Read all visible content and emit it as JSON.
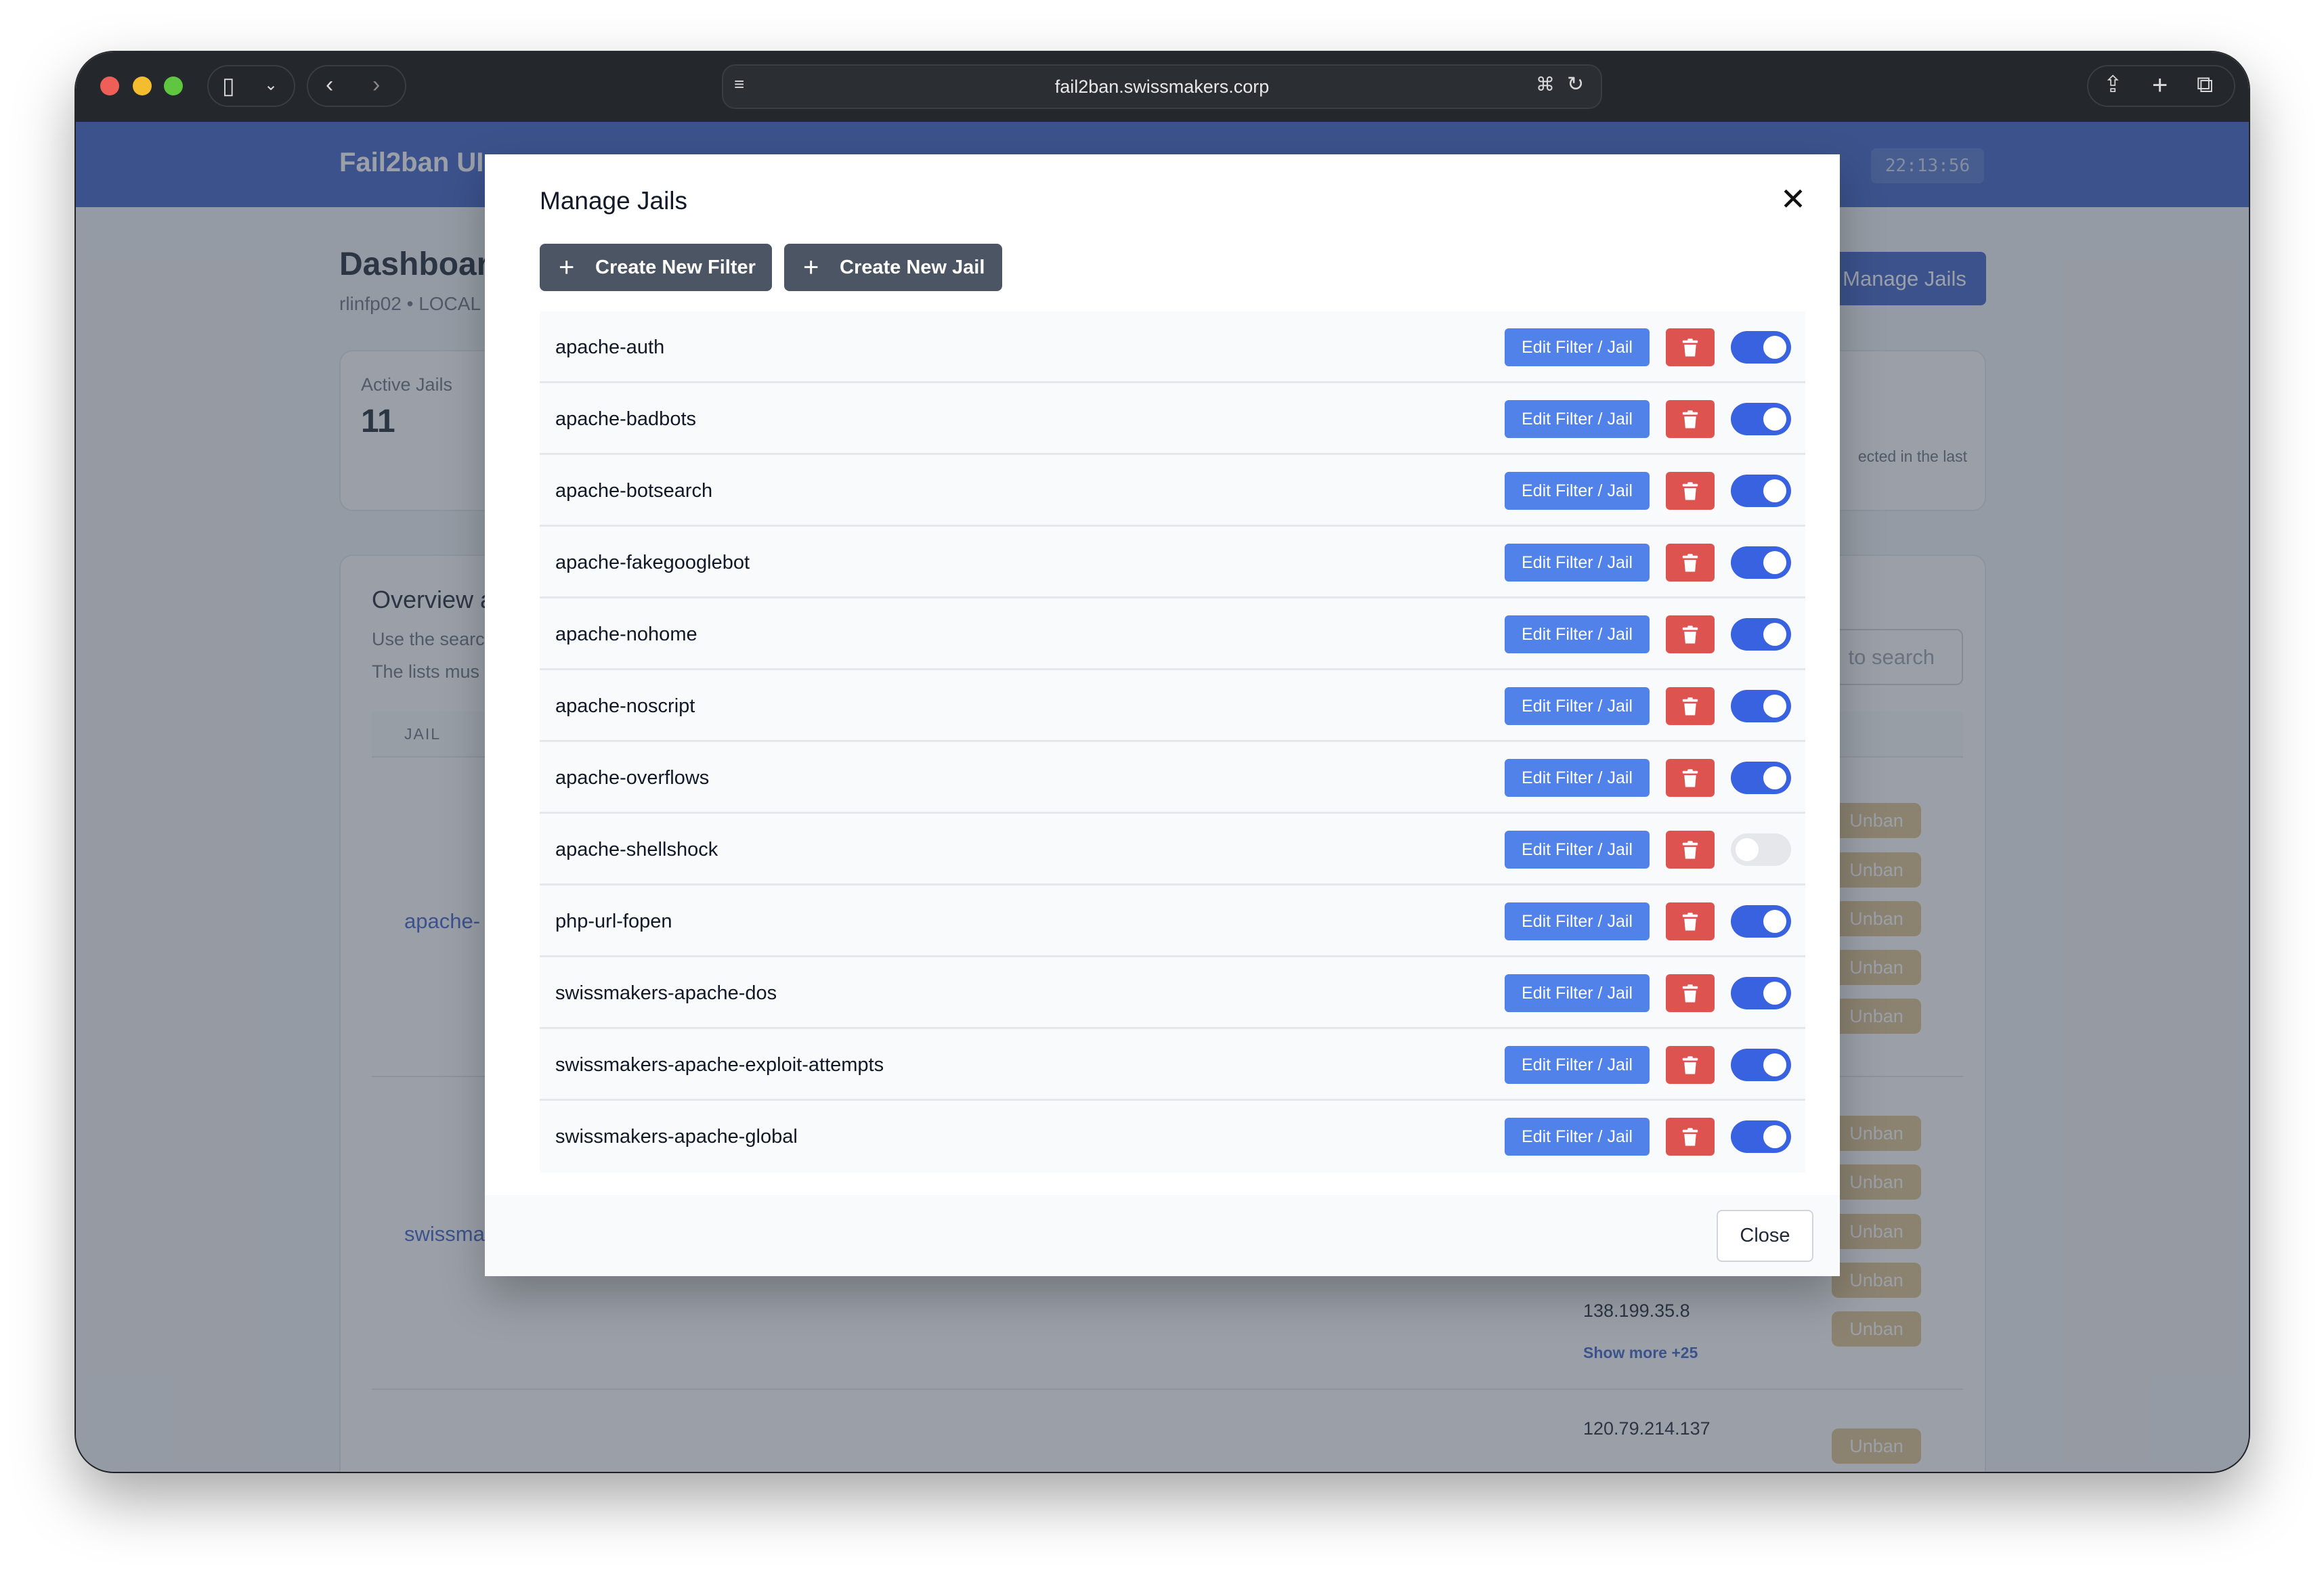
{
  "browser": {
    "url": "fail2ban.swissmakers.corp"
  },
  "app": {
    "title": "Fail2ban UI",
    "clock": "22:13:56"
  },
  "dashboard": {
    "title": "Dashboard",
    "subtitle": "rlinfp02 • LOCAL",
    "manage_jails_label": "Manage Jails",
    "active_jails_label": "Active Jails",
    "active_jails_value": "11",
    "right_card_text": "ected in the last",
    "overview_title": "Overview a",
    "overview_line1": "Use the searc",
    "overview_line2": "The lists mus",
    "search_placeholder": "to search",
    "jail_column": "JAIL",
    "jail1": "apache-",
    "jail2": "swissma",
    "unban_label": "Unban",
    "ip1": "138.199.35.8",
    "show_more": "Show more +25",
    "ip2": "120.79.214.137"
  },
  "modal": {
    "title": "Manage Jails",
    "create_filter_label": "Create New Filter",
    "create_jail_label": "Create New Jail",
    "edit_label": "Edit Filter / Jail",
    "close_label": "Close",
    "jails": [
      {
        "name": "apache-auth",
        "enabled": true
      },
      {
        "name": "apache-badbots",
        "enabled": true
      },
      {
        "name": "apache-botsearch",
        "enabled": true
      },
      {
        "name": "apache-fakegooglebot",
        "enabled": true
      },
      {
        "name": "apache-nohome",
        "enabled": true
      },
      {
        "name": "apache-noscript",
        "enabled": true
      },
      {
        "name": "apache-overflows",
        "enabled": true
      },
      {
        "name": "apache-shellshock",
        "enabled": false
      },
      {
        "name": "php-url-fopen",
        "enabled": true
      },
      {
        "name": "swissmakers-apache-dos",
        "enabled": true
      },
      {
        "name": "swissmakers-apache-exploit-attempts",
        "enabled": true
      },
      {
        "name": "swissmakers-apache-global",
        "enabled": true
      }
    ]
  },
  "colors": {
    "edit": "#5082ea",
    "delete": "#dc5350",
    "toggle_on": "#3962e0",
    "dark_button": "#4b5563"
  }
}
